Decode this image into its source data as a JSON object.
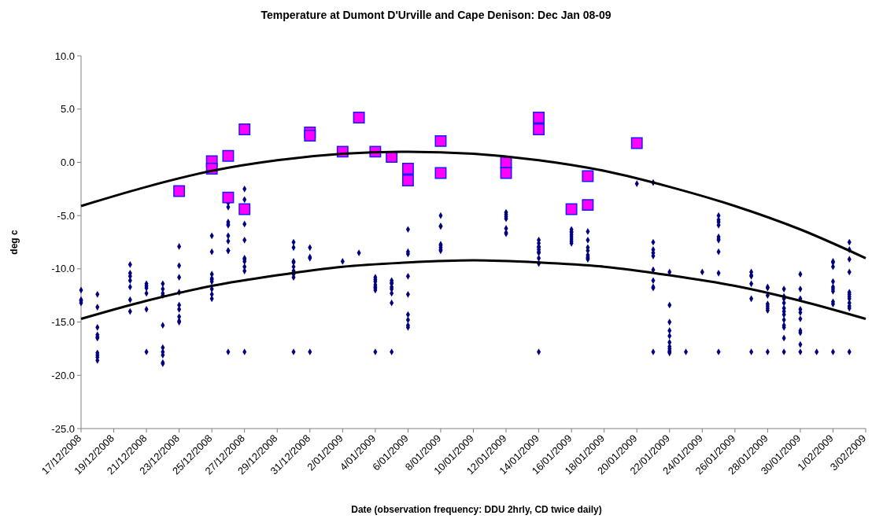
{
  "chart_data": {
    "type": "scatter",
    "title": "Temperature at Dumont D'Urville and Cape Denison: Dec Jan 08-09",
    "xlabel": "Date (observation frequency: DDU 2hrly, CD twice daily)",
    "ylabel": "deg c",
    "xlim": [
      "2008-12-17",
      "2009-02-03"
    ],
    "xticks": [
      {
        "value": "2008-12-17",
        "label": "17/12/2008"
      },
      {
        "value": "2008-12-19",
        "label": "19/12/2008"
      },
      {
        "value": "2008-12-21",
        "label": "21/12/2008"
      },
      {
        "value": "2008-12-23",
        "label": "23/12/2008"
      },
      {
        "value": "2008-12-25",
        "label": "25/12/2008"
      },
      {
        "value": "2008-12-27",
        "label": "27/12/2008"
      },
      {
        "value": "2008-12-29",
        "label": "29/12/2008"
      },
      {
        "value": "2008-12-31",
        "label": "31/12/2008"
      },
      {
        "value": "2009-01-02",
        "label": "2/01/2009"
      },
      {
        "value": "2009-01-04",
        "label": "4/01/2009"
      },
      {
        "value": "2009-01-06",
        "label": "6/01/2009"
      },
      {
        "value": "2009-01-08",
        "label": "8/01/2009"
      },
      {
        "value": "2009-01-10",
        "label": "10/01/2009"
      },
      {
        "value": "2009-01-12",
        "label": "12/01/2009"
      },
      {
        "value": "2009-01-14",
        "label": "14/01/2009"
      },
      {
        "value": "2009-01-16",
        "label": "16/01/2009"
      },
      {
        "value": "2009-01-18",
        "label": "18/01/2009"
      },
      {
        "value": "2009-01-20",
        "label": "20/01/2009"
      },
      {
        "value": "2009-01-22",
        "label": "22/01/2009"
      },
      {
        "value": "2009-01-24",
        "label": "24/01/2009"
      },
      {
        "value": "2009-01-26",
        "label": "26/01/2009"
      },
      {
        "value": "2009-01-28",
        "label": "28/01/2009"
      },
      {
        "value": "2009-01-30",
        "label": "30/01/2009"
      },
      {
        "value": "2009-02-01",
        "label": "1/02/2009"
      },
      {
        "value": "2009-02-03",
        "label": "3/02/2009"
      }
    ],
    "ylim": [
      -25,
      10
    ],
    "yticks": [
      {
        "value": 10,
        "label": "10.0"
      },
      {
        "value": 5,
        "label": "5.0"
      },
      {
        "value": 0,
        "label": "0.0"
      },
      {
        "value": -5,
        "label": "-5.0"
      },
      {
        "value": -10,
        "label": "-10.0"
      },
      {
        "value": -15,
        "label": "-15.0"
      },
      {
        "value": -20,
        "label": "-20.0"
      },
      {
        "value": -25,
        "label": "-25.0"
      }
    ],
    "series": [
      {
        "marker": "diamond",
        "color": "#000080",
        "x": [
          "2008-12-17",
          "2008-12-17",
          "2008-12-17",
          "2008-12-17",
          "2008-12-18",
          "2008-12-18",
          "2008-12-18",
          "2008-12-18",
          "2008-12-18",
          "2008-12-18",
          "2008-12-18",
          "2008-12-18",
          "2008-12-18",
          "2008-12-18",
          "2008-12-20",
          "2008-12-20",
          "2008-12-20",
          "2008-12-20",
          "2008-12-20",
          "2008-12-20",
          "2008-12-20",
          "2008-12-21",
          "2008-12-21",
          "2008-12-21",
          "2008-12-21",
          "2008-12-21",
          "2008-12-21",
          "2008-12-22",
          "2008-12-22",
          "2008-12-22",
          "2008-12-22",
          "2008-12-22",
          "2008-12-22",
          "2008-12-22",
          "2008-12-22",
          "2008-12-22",
          "2008-12-22",
          "2008-12-23",
          "2008-12-23",
          "2008-12-23",
          "2008-12-23",
          "2008-12-23",
          "2008-12-23",
          "2008-12-23",
          "2008-12-23",
          "2008-12-23",
          "2008-12-25",
          "2008-12-25",
          "2008-12-25",
          "2008-12-25",
          "2008-12-25",
          "2008-12-25",
          "2008-12-25",
          "2008-12-25",
          "2008-12-25",
          "2008-12-26",
          "2008-12-26",
          "2008-12-26",
          "2008-12-26",
          "2008-12-26",
          "2008-12-26",
          "2008-12-26",
          "2008-12-26",
          "2008-12-26",
          "2008-12-26",
          "2008-12-27",
          "2008-12-27",
          "2008-12-27",
          "2008-12-27",
          "2008-12-27",
          "2008-12-27",
          "2008-12-27",
          "2008-12-27",
          "2008-12-27",
          "2008-12-27",
          "2008-12-30",
          "2008-12-30",
          "2008-12-30",
          "2008-12-30",
          "2008-12-30",
          "2008-12-30",
          "2008-12-30",
          "2008-12-30",
          "2008-12-30",
          "2008-12-31",
          "2008-12-31",
          "2008-12-31",
          "2008-12-31",
          "2009-01-02",
          "2009-01-03",
          "2009-01-04",
          "2009-01-04",
          "2009-01-04",
          "2009-01-04",
          "2009-01-04",
          "2009-01-04",
          "2009-01-04",
          "2009-01-04",
          "2009-01-05",
          "2009-01-05",
          "2009-01-05",
          "2009-01-05",
          "2009-01-05",
          "2009-01-05",
          "2009-01-05",
          "2009-01-05",
          "2009-01-06",
          "2009-01-06",
          "2009-01-06",
          "2009-01-06",
          "2009-01-06",
          "2009-01-06",
          "2009-01-06",
          "2009-01-06",
          "2009-01-06",
          "2009-01-08",
          "2009-01-08",
          "2009-01-08",
          "2009-01-08",
          "2009-01-08",
          "2009-01-08",
          "2009-01-08",
          "2009-01-08",
          "2009-01-12",
          "2009-01-12",
          "2009-01-12",
          "2009-01-12",
          "2009-01-12",
          "2009-01-12",
          "2009-01-12",
          "2009-01-14",
          "2009-01-14",
          "2009-01-14",
          "2009-01-14",
          "2009-01-14",
          "2009-01-14",
          "2009-01-14",
          "2009-01-14",
          "2009-01-14",
          "2009-01-14",
          "2009-01-16",
          "2009-01-16",
          "2009-01-16",
          "2009-01-16",
          "2009-01-16",
          "2009-01-16",
          "2009-01-16",
          "2009-01-16",
          "2009-01-17",
          "2009-01-17",
          "2009-01-17",
          "2009-01-17",
          "2009-01-17",
          "2009-01-17",
          "2009-01-17",
          "2009-01-17",
          "2009-01-20",
          "2009-01-21",
          "2009-01-21",
          "2009-01-21",
          "2009-01-21",
          "2009-01-21",
          "2009-01-21",
          "2009-01-21",
          "2009-01-21",
          "2009-01-21",
          "2009-01-21",
          "2009-01-22",
          "2009-01-22",
          "2009-01-22",
          "2009-01-22",
          "2009-01-22",
          "2009-01-22",
          "2009-01-22",
          "2009-01-22",
          "2009-01-22",
          "2009-01-22",
          "2009-01-22",
          "2009-01-23",
          "2009-01-24",
          "2009-01-25",
          "2009-01-25",
          "2009-01-25",
          "2009-01-25",
          "2009-01-25",
          "2009-01-25",
          "2009-01-25",
          "2009-01-25",
          "2009-01-25",
          "2009-01-25",
          "2009-01-27",
          "2009-01-27",
          "2009-01-27",
          "2009-01-27",
          "2009-01-27",
          "2009-01-27",
          "2009-01-28",
          "2009-01-28",
          "2009-01-28",
          "2009-01-28",
          "2009-01-28",
          "2009-01-28",
          "2009-01-28",
          "2009-01-28",
          "2009-01-29",
          "2009-01-29",
          "2009-01-29",
          "2009-01-29",
          "2009-01-29",
          "2009-01-29",
          "2009-01-29",
          "2009-01-29",
          "2009-01-29",
          "2009-01-29",
          "2009-01-29",
          "2009-01-29",
          "2009-01-30",
          "2009-01-30",
          "2009-01-30",
          "2009-01-30",
          "2009-01-30",
          "2009-01-30",
          "2009-01-30",
          "2009-01-30",
          "2009-01-30",
          "2009-01-30",
          "2009-01-31",
          "2009-02-01",
          "2009-02-01",
          "2009-02-01",
          "2009-02-01",
          "2009-02-01",
          "2009-02-01",
          "2009-02-01",
          "2009-02-01",
          "2009-02-01",
          "2009-02-01",
          "2009-02-02",
          "2009-02-02",
          "2009-02-02",
          "2009-02-02",
          "2009-02-02",
          "2009-02-02",
          "2009-02-02",
          "2009-02-02",
          "2009-02-02",
          "2009-02-02",
          "2009-02-02",
          "2009-02-02"
        ],
        "values": [
          -12.0,
          -12.9,
          -13.0,
          -13.2,
          -12.4,
          -13.6,
          -15.5,
          -16.2,
          -16.4,
          -16.5,
          -17.9,
          -18.1,
          -18.3,
          -18.6,
          -9.6,
          -10.4,
          -10.7,
          -11.1,
          -11.7,
          -12.9,
          -14.0,
          -11.4,
          -11.6,
          -11.8,
          -12.3,
          -13.8,
          -17.8,
          -11.4,
          -11.9,
          -12.3,
          -12.5,
          -15.3,
          -17.4,
          -17.8,
          -18.1,
          -18.8,
          -18.9,
          -7.9,
          -9.7,
          -10.8,
          -12.2,
          -13.4,
          -13.8,
          -14.5,
          -14.9,
          -15.0,
          -6.9,
          -8.4,
          -10.5,
          -10.9,
          -11.0,
          -11.2,
          -11.9,
          -12.4,
          -12.8,
          -3.8,
          -4.2,
          -5.6,
          -5.8,
          -5.9,
          -6.9,
          -7.4,
          -8.3,
          -8.3,
          -17.8,
          -2.5,
          -3.5,
          -5.8,
          -7.3,
          -9.0,
          -9.1,
          -9.3,
          -9.8,
          -10.2,
          -17.8,
          -7.5,
          -8.0,
          -9.3,
          -9.4,
          -9.8,
          -10.2,
          -10.5,
          -10.8,
          -17.8,
          -8.0,
          -8.9,
          -9.0,
          -17.8,
          -9.3,
          -8.5,
          -10.8,
          -11.0,
          -11.2,
          -11.5,
          -11.7,
          -11.8,
          -12.0,
          -17.8,
          -11.1,
          -11.3,
          -11.4,
          -11.7,
          -11.9,
          -12.3,
          -13.2,
          -17.8,
          -6.3,
          -8.4,
          -8.6,
          -10.7,
          -12.4,
          -14.3,
          -14.8,
          -15.3,
          -15.5,
          -5.0,
          -6.0,
          -6.0,
          -7.7,
          -7.8,
          -8.0,
          -8.2,
          -8.3,
          -4.7,
          -4.9,
          -5.1,
          -5.3,
          -6.2,
          -6.6,
          -6.7,
          -7.3,
          -7.6,
          -7.9,
          -8.0,
          -8.2,
          -8.4,
          -8.5,
          -9.0,
          -9.5,
          -17.8,
          -6.3,
          -6.5,
          -6.6,
          -6.8,
          -7.0,
          -7.2,
          -7.4,
          -7.6,
          -6.5,
          -7.3,
          -8.0,
          -8.3,
          -8.7,
          -8.9,
          -9.0,
          -9.1,
          -2.0,
          -1.9,
          -7.5,
          -8.2,
          -8.5,
          -8.8,
          -10.1,
          -11.1,
          -11.7,
          -11.8,
          -17.8,
          -10.3,
          -13.4,
          -15.0,
          -15.8,
          -16.3,
          -16.9,
          -17.3,
          -17.5,
          -17.7,
          -17.8,
          -17.9,
          -17.8,
          -10.3,
          -5.0,
          -5.4,
          -5.6,
          -5.9,
          -7.0,
          -7.2,
          -7.3,
          -8.4,
          -10.4,
          -17.8,
          -10.3,
          -10.6,
          -10.7,
          -11.4,
          -12.8,
          -17.8,
          -11.7,
          -11.8,
          -12.5,
          -13.3,
          -13.5,
          -13.7,
          -13.9,
          -17.8,
          -11.9,
          -12.6,
          -12.8,
          -13.2,
          -13.7,
          -14.0,
          -14.3,
          -14.8,
          -15.3,
          -15.5,
          -16.5,
          -17.8,
          -10.5,
          -11.9,
          -12.8,
          -13.8,
          -14.1,
          -14.7,
          -15.8,
          -16.0,
          -17.1,
          -17.8,
          -17.8,
          -9.3,
          -9.4,
          -9.8,
          -11.2,
          -11.7,
          -11.9,
          -12.1,
          -13.1,
          -13.3,
          -17.8,
          -7.5,
          -8.2,
          -9.1,
          -10.3,
          -12.2,
          -12.4,
          -12.6,
          -12.8,
          -13.2,
          -13.5,
          -13.7,
          -17.8
        ]
      },
      {
        "marker": "square",
        "color": "#ff00ff",
        "x": [
          "2008-12-23",
          "2008-12-25",
          "2008-12-25",
          "2008-12-26",
          "2008-12-26",
          "2008-12-27",
          "2008-12-27",
          "2008-12-31",
          "2008-12-31",
          "2009-01-02",
          "2009-01-03",
          "2009-01-04",
          "2009-01-05",
          "2009-01-06",
          "2009-01-06",
          "2009-01-08",
          "2009-01-08",
          "2009-01-12",
          "2009-01-12",
          "2009-01-14",
          "2009-01-14",
          "2009-01-16",
          "2009-01-17",
          "2009-01-17",
          "2009-01-20"
        ],
        "values": [
          -2.7,
          0.1,
          -0.6,
          0.6,
          -3.3,
          3.1,
          -4.4,
          2.8,
          2.5,
          1.0,
          4.2,
          1.0,
          0.5,
          -0.6,
          -1.7,
          2.0,
          -1.0,
          0.0,
          -1.0,
          4.2,
          3.1,
          -4.4,
          -1.3,
          -4.0,
          1.8
        ]
      },
      {
        "type": "line",
        "marker": "none",
        "color": "#000000",
        "x": [
          "2008-12-17",
          "2008-12-21",
          "2008-12-25",
          "2008-12-29",
          "2009-01-02",
          "2009-01-06",
          "2009-01-10",
          "2009-01-14",
          "2009-01-18",
          "2009-01-22",
          "2009-01-26",
          "2009-01-30",
          "2009-02-03"
        ],
        "values": [
          -4.1,
          -2.3,
          -0.8,
          0.2,
          0.8,
          1.0,
          0.8,
          0.2,
          -0.8,
          -2.3,
          -4.1,
          -6.3,
          -9.0
        ]
      },
      {
        "type": "line",
        "marker": "none",
        "color": "#000000",
        "x": [
          "2008-12-17",
          "2008-12-21",
          "2008-12-25",
          "2008-12-29",
          "2009-01-02",
          "2009-01-06",
          "2009-01-10",
          "2009-01-14",
          "2009-01-18",
          "2009-01-22",
          "2009-01-26",
          "2009-01-30",
          "2009-02-03"
        ],
        "values": [
          -14.7,
          -13.0,
          -11.6,
          -10.6,
          -9.8,
          -9.4,
          -9.2,
          -9.4,
          -9.8,
          -10.6,
          -11.6,
          -13.0,
          -14.7
        ]
      }
    ]
  }
}
